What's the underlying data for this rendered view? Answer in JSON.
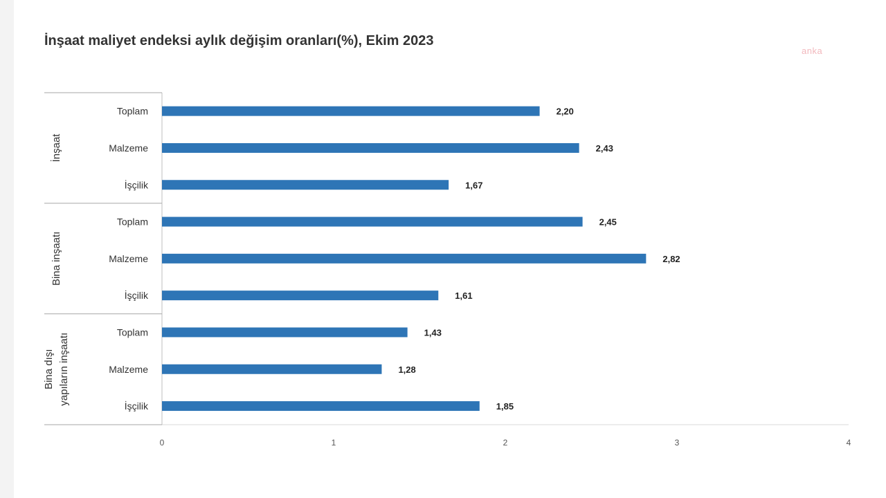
{
  "chart_data": {
    "type": "bar",
    "orientation": "horizontal",
    "title": "İnşaat maliyet endeksi aylık değişim oranları(%), Ekim 2023",
    "groups": [
      {
        "name": "İnşaat",
        "label_lines": [
          "İnşaat"
        ],
        "items": [
          {
            "category": "Toplam",
            "value": 2.2,
            "label": "2,20"
          },
          {
            "category": "Malzeme",
            "value": 2.43,
            "label": "2,43"
          },
          {
            "category": "İşçilik",
            "value": 1.67,
            "label": "1,67"
          }
        ]
      },
      {
        "name": "Bina inşaatı",
        "label_lines": [
          "Bina inşaatı"
        ],
        "items": [
          {
            "category": "Toplam",
            "value": 2.45,
            "label": "2,45"
          },
          {
            "category": "Malzeme",
            "value": 2.82,
            "label": "2,82"
          },
          {
            "category": "İşçilik",
            "value": 1.61,
            "label": "1,61"
          }
        ]
      },
      {
        "name": "Bina dışı yapıların inşaatı",
        "label_lines": [
          "Bina dışı",
          "yapıların inşaatı"
        ],
        "items": [
          {
            "category": "Toplam",
            "value": 1.43,
            "label": "1,43"
          },
          {
            "category": "Malzeme",
            "value": 1.28,
            "label": "1,28"
          },
          {
            "category": "İşçilik",
            "value": 1.85,
            "label": "1,85"
          }
        ]
      }
    ],
    "xlim": [
      0,
      4
    ],
    "xticks": [
      "0",
      "1",
      "2",
      "3",
      "4"
    ],
    "bar_color": "#2e75b6",
    "grid": false,
    "legend": "none"
  },
  "watermark": "anka"
}
